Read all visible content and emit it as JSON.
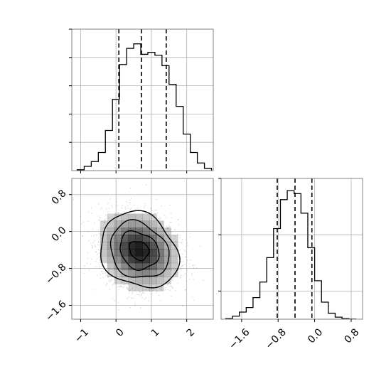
{
  "chart_data": {
    "type": "corner",
    "colors": {
      "line": "#000000",
      "grid": "#b0b0b0",
      "frame": "#808080",
      "density": "#000000",
      "scatter": "#808080"
    },
    "grid": true,
    "panels": [
      {
        "id": "hist-x",
        "type": "histogram",
        "xlim": [
          -1.25,
          2.75
        ],
        "ylim": [
          0,
          0.5
        ],
        "xticks": [
          -1,
          0,
          1,
          2
        ],
        "yticks": [
          0.1,
          0.2,
          0.3,
          0.4,
          0.5
        ],
        "show_x_tick_labels": false,
        "show_y_tick_labels": false,
        "bin_edges": [
          -1.1,
          -0.9,
          -0.7,
          -0.5,
          -0.3,
          -0.1,
          0.1,
          0.3,
          0.5,
          0.7,
          0.9,
          1.1,
          1.3,
          1.5,
          1.7,
          1.9,
          2.1,
          2.3,
          2.5,
          2.7
        ],
        "counts": [
          0.003,
          0.015,
          0.032,
          0.064,
          0.142,
          0.252,
          0.375,
          0.432,
          0.448,
          0.411,
          0.418,
          0.408,
          0.371,
          0.305,
          0.227,
          0.129,
          0.064,
          0.027,
          0.008
        ],
        "quantile_lines": [
          0.08,
          0.72,
          1.42
        ]
      },
      {
        "id": "hist-y",
        "type": "histogram",
        "xlim": [
          -2.05,
          1.05
        ],
        "ylim": [
          0,
          0.75
        ],
        "xticks": [
          -1.6,
          -0.8,
          0.0,
          0.8
        ],
        "xtick_labels": [
          "−1.6",
          "−0.8",
          "0.0",
          "0.8"
        ],
        "yticks": [
          0.15,
          0.45,
          0.75
        ],
        "show_y_tick_labels": false,
        "bin_edges": [
          -1.95,
          -1.8,
          -1.65,
          -1.5,
          -1.35,
          -1.2,
          -1.05,
          -0.9,
          -0.75,
          -0.6,
          -0.45,
          -0.3,
          -0.15,
          0.0,
          0.15,
          0.3,
          0.45,
          0.6,
          0.75,
          0.9
        ],
        "counts": [
          0.003,
          0.016,
          0.038,
          0.062,
          0.115,
          0.198,
          0.328,
          0.483,
          0.637,
          0.685,
          0.669,
          0.565,
          0.381,
          0.205,
          0.091,
          0.032,
          0.011,
          0.003,
          0.001
        ],
        "quantile_lines": [
          -0.82,
          -0.43,
          -0.06
        ]
      },
      {
        "id": "joint",
        "type": "2d-density",
        "xlim": [
          -1.25,
          2.75
        ],
        "ylim": [
          -1.9,
          1.15
        ],
        "xticks": [
          -1,
          0,
          1,
          2
        ],
        "xtick_labels": [
          "−1",
          "0",
          "1",
          "2"
        ],
        "yticks": [
          -1.6,
          -0.8,
          0.0,
          0.8
        ],
        "ytick_labels": [
          "−1.6",
          "−0.8",
          "0.0",
          "0.8"
        ],
        "center": [
          0.65,
          -0.41
        ],
        "sigma": [
          0.55,
          0.41
        ],
        "correlation": -0.18,
        "contour_levels_sigma": [
          0.5,
          1.0,
          1.5,
          2.0
        ]
      }
    ]
  }
}
